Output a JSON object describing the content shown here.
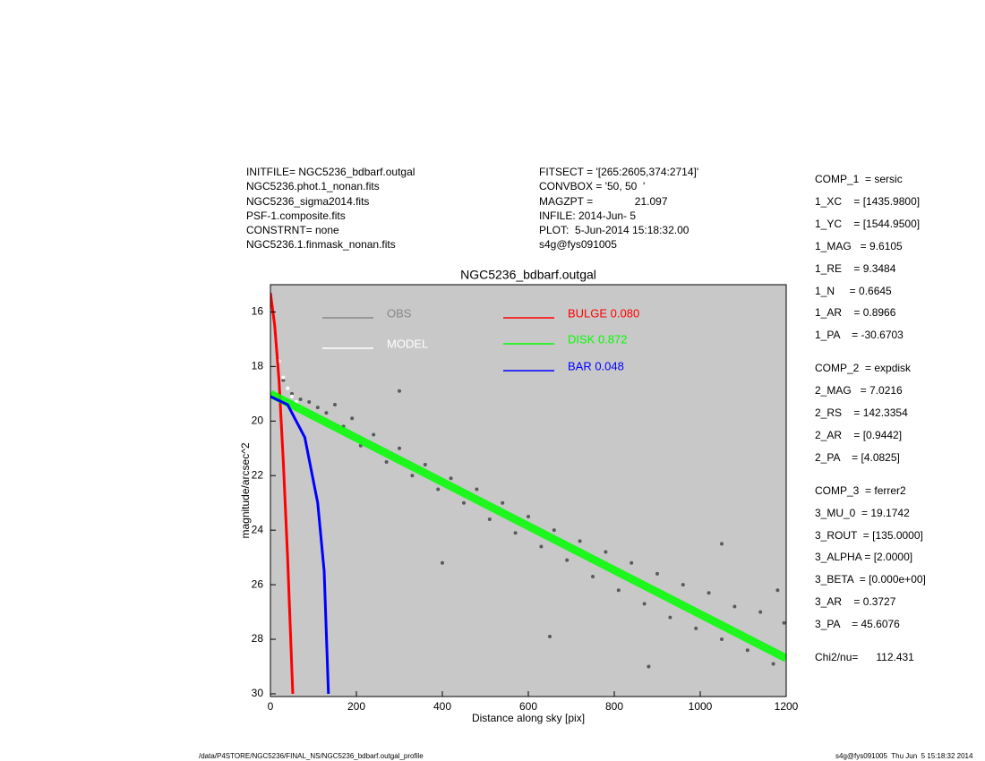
{
  "header_left": [
    "INITFILE= NGC5236_bdbarf.outgal",
    "NGC5236.phot.1_nonan.fits",
    "NGC5236_sigma2014.fits",
    "PSF-1.composite.fits",
    "CONSTRNT= none",
    "NGC5236.1.finmask_nonan.fits"
  ],
  "header_right": [
    "FITSECT = '[265:2605,374:2714]'",
    "CONVBOX = '50, 50  '",
    "MAGZPT =              21.097",
    "INFILE: 2014-Jun- 5",
    "PLOT:  5-Jun-2014 15:18:32.00",
    "s4g@fys091005"
  ],
  "parameters": [
    [
      "COMP_1  = sersic",
      "1_XC    = [1435.9800]",
      "1_YC    = [1544.9500]",
      "1_MAG   = 9.6105",
      "1_RE    = 9.3484",
      "1_N     = 0.6645",
      "1_AR    = 0.8966",
      "1_PA    = -30.6703"
    ],
    [
      "COMP_2  = expdisk",
      "2_MAG   = 7.0216",
      "2_RS    = 142.3354",
      "2_AR    = [0.9442]",
      "2_PA    = [4.0825]"
    ],
    [
      "COMP_3  = ferrer2",
      "3_MU_0  = 19.1742",
      "3_ROUT  = [135.0000]",
      "3_ALPHA = [2.0000]",
      "3_BETA  = [0.000e+00]",
      "3_AR    = 0.3727",
      "3_PA    = 45.6076"
    ],
    [
      "Chi2/nu=      112.431"
    ]
  ],
  "footer_left": "/data/P4STORE/NGC5236/FINAL_NS/NGC5236_bdbarf.outgal_profile",
  "footer_right": "s4g@fys091005  Thu Jun  5 15:18:32 2014",
  "chart_data": {
    "type": "scatter",
    "title": "NGC5236_bdbarf.outgal",
    "xlabel": "Distance along sky [pix]",
    "ylabel": "magnitude/arcsec^2",
    "xlim": [
      0,
      1200
    ],
    "ylim": [
      30.1,
      15.0
    ],
    "xticks": [
      0,
      200,
      400,
      600,
      800,
      1000,
      1200
    ],
    "yticks": [
      16,
      18,
      20,
      22,
      24,
      26,
      28,
      30
    ],
    "background": "#c8c8c8",
    "series": [
      {
        "name": "OBS",
        "color": "#5a5a5a",
        "legend_color": "#888888",
        "style": "points",
        "x": [
          30,
          50,
          70,
          90,
          110,
          130,
          150,
          170,
          190,
          210,
          240,
          270,
          300,
          330,
          360,
          390,
          420,
          450,
          480,
          510,
          540,
          570,
          600,
          630,
          660,
          690,
          720,
          750,
          780,
          810,
          840,
          870,
          900,
          930,
          960,
          990,
          1020,
          1050,
          1080,
          1110,
          1140,
          1170,
          1195,
          650,
          880,
          400,
          1050,
          1180,
          300
        ],
        "values": [
          18.5,
          19.0,
          19.2,
          19.3,
          19.5,
          19.7,
          19.4,
          20.2,
          19.9,
          20.9,
          20.5,
          21.5,
          21.0,
          22.0,
          21.6,
          22.5,
          22.1,
          23.0,
          22.5,
          23.6,
          23.0,
          24.1,
          23.5,
          24.6,
          24.0,
          25.1,
          24.4,
          25.7,
          24.8,
          26.2,
          25.2,
          26.7,
          25.6,
          27.2,
          26.0,
          27.6,
          26.3,
          28.0,
          26.8,
          28.4,
          27.0,
          28.9,
          27.4,
          27.9,
          29.0,
          25.2,
          24.5,
          26.2,
          18.9
        ]
      },
      {
        "name": "MODEL",
        "color": "#ffffff",
        "legend_color": "#ffffff",
        "style": "points",
        "x": [
          20,
          30,
          40,
          50,
          60,
          70
        ],
        "values": [
          17.8,
          18.4,
          18.8,
          19.1,
          19.3,
          19.5
        ]
      },
      {
        "name": "BULGE  0.080",
        "color": "#ff0000",
        "style": "line",
        "x": [
          0,
          10,
          20,
          30,
          40,
          52
        ],
        "values": [
          15.3,
          16.5,
          18.5,
          21.5,
          25,
          30
        ]
      },
      {
        "name": "DISK  0.872",
        "color": "#00ff00",
        "style": "band",
        "x": [
          0,
          1200
        ],
        "values": [
          19.0,
          28.7
        ]
      },
      {
        "name": "BAR  0.048",
        "color": "#0000ff",
        "style": "line",
        "x": [
          0,
          40,
          80,
          110,
          125,
          135
        ],
        "values": [
          19.1,
          19.4,
          20.6,
          23,
          25.5,
          30
        ]
      }
    ]
  }
}
